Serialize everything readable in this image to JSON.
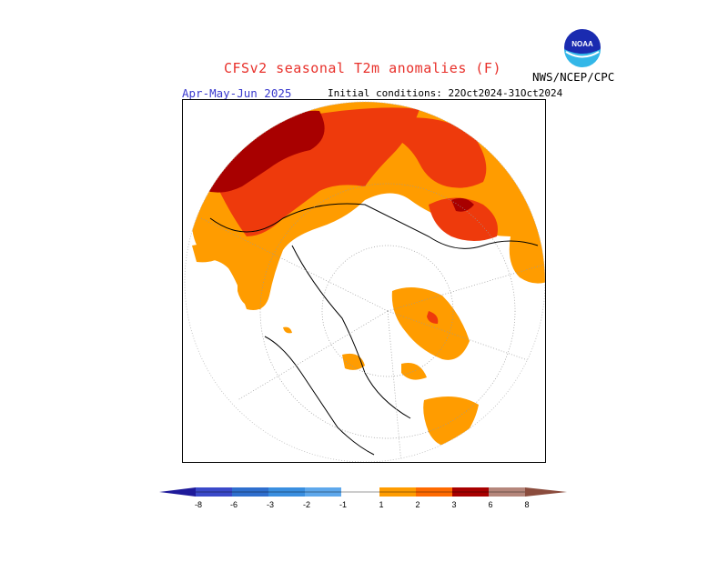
{
  "header": {
    "title": "CFSv2 seasonal T2m anomalies (F)",
    "season": "Apr-May-Jun 2025",
    "initial_conditions": "Initial conditions: 22Oct2024-31Oct2024",
    "agency": "NWS/NCEP/CPC",
    "logo_text": "NOAA"
  },
  "colors": {
    "title": "#e8302a",
    "season": "#3a3acd",
    "neg8": "#1e1a9a",
    "neg6": "#3b49c9",
    "neg4": "#2f6fce",
    "neg3": "#3a8fe0",
    "neg2": "#5ea8ec",
    "neg1": "#93c8f5",
    "pos1": "#ff9c00",
    "pos2": "#ff6a00",
    "pos3": "#ee3a0c",
    "pos4": "#a80000",
    "pos6": "#b5867b",
    "pos8": "#8b4c3d"
  },
  "colorbar": {
    "labels": [
      "-8",
      "-6",
      "-3",
      "-2",
      "-1",
      "1",
      "2",
      "3",
      "6",
      "8"
    ]
  }
}
